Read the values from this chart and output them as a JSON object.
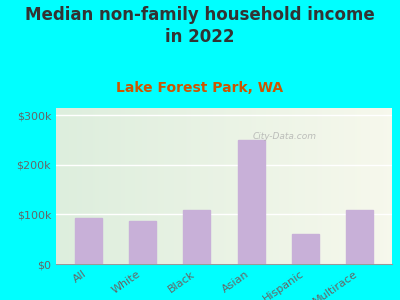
{
  "title": "Median non-family household income\nin 2022",
  "subtitle": "Lake Forest Park, WA",
  "categories": [
    "All",
    "White",
    "Black",
    "Asian",
    "Hispanic",
    "Multirace"
  ],
  "values": [
    93000,
    87000,
    110000,
    250000,
    60000,
    110000
  ],
  "bar_color": "#c8b0d8",
  "background_outer": "#00ffff",
  "background_inner_left": "#ddeedd",
  "background_inner_right": "#f0f4f8",
  "title_color": "#333333",
  "subtitle_color": "#cc5500",
  "tick_label_color": "#666666",
  "ytick_labels": [
    "$0",
    "$100k",
    "$200k",
    "$300k"
  ],
  "ytick_values": [
    0,
    100000,
    200000,
    300000
  ],
  "ylim": [
    0,
    315000
  ],
  "watermark": "City-Data.com",
  "title_fontsize": 12,
  "subtitle_fontsize": 10,
  "tick_fontsize": 8
}
